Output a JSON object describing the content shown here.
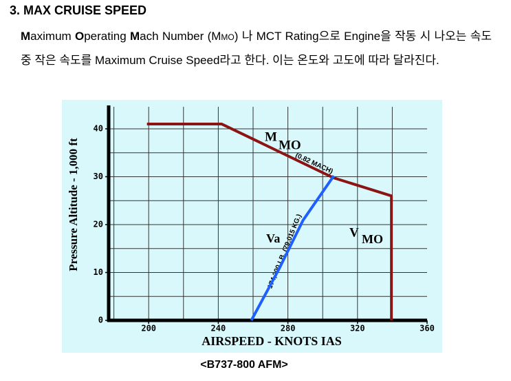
{
  "heading": "3. MAX CRUISE SPEED",
  "paragraph": [
    "M",
    "aximum ",
    "O",
    "perating ",
    "M",
    "ach Number (M",
    "MO",
    ") 나 MCT Rating으로 Engine을 작동 시 나오는 속도 중 작은 속도를 Maximum Cruise Speed라고 한다. 이는 온도와 고도에 따라 달라진다."
  ],
  "chart_data": {
    "type": "line",
    "x_label": "AIRSPEED - KNOTS IAS",
    "y_label": "Pressure Altitude - 1,000 ft",
    "xlim": [
      177,
      360
    ],
    "ylim": [
      0,
      44.6
    ],
    "xticks": [
      200,
      240,
      280,
      320,
      360
    ],
    "yticks": [
      0,
      10,
      20,
      30,
      40
    ],
    "xgrid": [
      180,
      200,
      220,
      240,
      260,
      280,
      300,
      320,
      340
    ],
    "ygrid": [
      5,
      10,
      15,
      20,
      25,
      30,
      35,
      40
    ],
    "background": "#d8f8fb",
    "series": [
      {
        "color": "#8b1414",
        "x": [
          199,
          242,
          306,
          339.5,
          339.5
        ],
        "values": [
          41,
          41,
          29.8,
          26,
          0
        ]
      },
      {
        "color": "#1f5fff",
        "x": [
          259,
          275,
          288.7,
          306.4
        ],
        "values": [
          0,
          10.8,
          20.9,
          30.2
        ]
      }
    ],
    "annotations": [
      "M",
      "MO",
      "(0.82 MACH)",
      "Va",
      "174,200 LB. (79,015 KG.)",
      "V",
      "MO"
    ]
  },
  "caption": "<B737-800 AFM>"
}
